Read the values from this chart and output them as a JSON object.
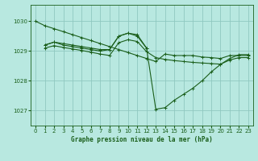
{
  "title": "Graphe pression niveau de la mer (hPa)",
  "bg_color": "#b8e8e0",
  "grid_color": "#90c8c0",
  "line_color": "#1a5e1a",
  "xlim": [
    -0.5,
    23.5
  ],
  "ylim": [
    1026.5,
    1030.55
  ],
  "yticks": [
    1027,
    1028,
    1029,
    1030
  ],
  "xticks": [
    0,
    1,
    2,
    3,
    4,
    5,
    6,
    7,
    8,
    9,
    10,
    11,
    12,
    13,
    14,
    15,
    16,
    17,
    18,
    19,
    20,
    21,
    22,
    23
  ],
  "s1_x": [
    0,
    1,
    2,
    3,
    4,
    5,
    6,
    7,
    8,
    9,
    10,
    11,
    12,
    13,
    14,
    15,
    16,
    17,
    18,
    19,
    20,
    21,
    22,
    23
  ],
  "s1_y": [
    1030.0,
    1029.85,
    1029.75,
    1029.65,
    1029.55,
    1029.45,
    1029.35,
    1029.25,
    1029.15,
    1029.05,
    1028.95,
    1028.85,
    1028.75,
    1028.65,
    1028.9,
    1028.85,
    1028.85,
    1028.85,
    1028.8,
    1028.78,
    1028.75,
    1028.85,
    1028.85,
    1028.85
  ],
  "s2_x": [
    1,
    2,
    3,
    4,
    5,
    6,
    7,
    8,
    9,
    10,
    11,
    12,
    13,
    14,
    15,
    16,
    17,
    18,
    19,
    20,
    21,
    22,
    23
  ],
  "s2_y": [
    1029.2,
    1029.3,
    1029.25,
    1029.2,
    1029.15,
    1029.1,
    1029.05,
    1029.05,
    1029.5,
    1029.6,
    1029.55,
    1029.1,
    1027.05,
    1027.1,
    1027.35,
    1027.55,
    1027.75,
    1028.0,
    1028.3,
    1028.55,
    1028.75,
    1028.88,
    1028.88
  ],
  "s3_x": [
    1,
    2,
    3,
    4,
    5,
    6,
    7,
    8,
    9,
    10,
    11,
    12
  ],
  "s3_y": [
    1029.2,
    1029.3,
    1029.2,
    1029.15,
    1029.1,
    1029.05,
    1029.0,
    1029.05,
    1029.5,
    1029.6,
    1029.5,
    1029.1
  ],
  "s4_x": [
    1,
    2,
    3,
    4,
    5,
    6,
    7,
    8,
    9,
    10,
    11,
    12,
    13,
    14,
    15,
    16,
    17,
    18,
    19,
    20,
    21,
    22,
    23
  ],
  "s4_y": [
    1029.1,
    1029.18,
    1029.12,
    1029.07,
    1029.02,
    1028.96,
    1028.9,
    1028.85,
    1029.28,
    1029.38,
    1029.32,
    1028.98,
    1028.78,
    1028.72,
    1028.68,
    1028.65,
    1028.62,
    1028.6,
    1028.58,
    1028.56,
    1028.7,
    1028.78,
    1028.78
  ]
}
